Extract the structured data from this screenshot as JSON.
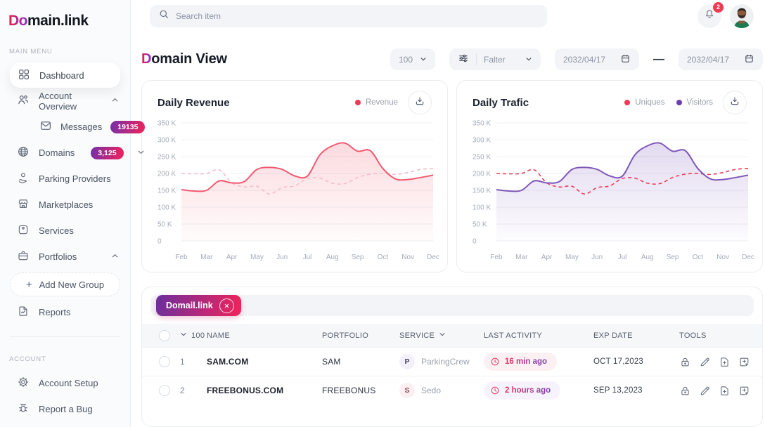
{
  "sidebar": {
    "logo": {
      "accent": "Do",
      "rest": "main.link"
    },
    "section_main": "MAIN MENU",
    "section_account": "ACCOUNT",
    "items": [
      {
        "label": "Dashboard",
        "icon": "dashboard-grid-icon",
        "active": true
      },
      {
        "label": "Account Overview",
        "icon": "users-icon",
        "chevron": "up"
      },
      {
        "label": "Messages",
        "icon": "mail-icon",
        "badge": "19135"
      },
      {
        "label": "Domains",
        "icon": "globe-icon",
        "badge": "3,125",
        "chevron": "down"
      },
      {
        "label": "Parking Providers",
        "icon": "hand-coin-icon"
      },
      {
        "label": "Marketplaces",
        "icon": "storefront-icon"
      },
      {
        "label": "Services",
        "icon": "package-icon"
      },
      {
        "label": "Portfolios",
        "icon": "briefcase-icon",
        "chevron": "up"
      },
      {
        "plus": "+",
        "label": "Add New Group",
        "type": "dashed-button"
      },
      {
        "label": "Reports",
        "icon": "report-icon"
      },
      {
        "label": "Account Setup",
        "icon": "gear-icon"
      },
      {
        "label": "Report a Bug",
        "icon": "bug-icon"
      }
    ]
  },
  "topbar": {
    "search_placeholder": "Search item",
    "notification_count": "2"
  },
  "header": {
    "title_accent": "D",
    "title_rest": "omain View",
    "page_size": "100",
    "filter_label": "Falter",
    "date_from": "2032/04/17",
    "date_separator": "—",
    "date_to": "2032/04/17"
  },
  "chart_data": [
    {
      "type": "area",
      "title": "Daily Revenue",
      "legend": [
        {
          "name": "Revenue",
          "color": "#ee3b58"
        }
      ],
      "categories": [
        "Feb",
        "Mar",
        "Apr",
        "May",
        "Jun",
        "Jul",
        "Aug",
        "Sep",
        "Oct",
        "Nov",
        "Dec"
      ],
      "yticks": [
        "350 K",
        "300 K",
        "250 K",
        "200 K",
        "150 K",
        "100 K",
        "50 K",
        "0"
      ],
      "units": "thousands",
      "ylim_k": [
        0,
        350
      ],
      "grid": true,
      "legend_position": "top-right",
      "series": [
        {
          "name": "Revenue",
          "style": "solid",
          "color": "#f2596f",
          "fill": true,
          "values_k": [
            152,
            148,
            150,
            178,
            172,
            176,
            212,
            218,
            212,
            193,
            192,
            255,
            282,
            290,
            266,
            268,
            215,
            184,
            182,
            188,
            195
          ]
        },
        {
          "name": "",
          "style": "dashed",
          "color": "#f6bdc9",
          "fill": false,
          "values_k": [
            200,
            199,
            200,
            211,
            172,
            160,
            162,
            139,
            158,
            163,
            185,
            186,
            171,
            170,
            188,
            198,
            200,
            197,
            203,
            212,
            215
          ]
        }
      ]
    },
    {
      "type": "area",
      "title": "Daily Trafic",
      "legend": [
        {
          "name": "Uniques",
          "color": "#ee3b58"
        },
        {
          "name": "Visitors",
          "color": "#6d3cb0"
        }
      ],
      "categories": [
        "Feb",
        "Mar",
        "Apr",
        "May",
        "Jun",
        "Jul",
        "Aug",
        "Sep",
        "Oct",
        "Nov",
        "Dec"
      ],
      "yticks": [
        "350 K",
        "300 K",
        "250 K",
        "200 K",
        "150 K",
        "100 K",
        "50 K",
        "0"
      ],
      "units": "thousands",
      "ylim_k": [
        0,
        350
      ],
      "grid": true,
      "legend_position": "top-right",
      "series": [
        {
          "name": "Visitors",
          "style": "solid",
          "color": "#7e57ba",
          "fill": true,
          "values_k": [
            152,
            148,
            150,
            178,
            172,
            176,
            212,
            218,
            212,
            193,
            192,
            255,
            282,
            290,
            266,
            268,
            215,
            184,
            182,
            188,
            195
          ]
        },
        {
          "name": "Uniques",
          "style": "dashed",
          "color": "#ee3b58",
          "fill": false,
          "values_k": [
            200,
            199,
            200,
            211,
            172,
            160,
            162,
            139,
            158,
            163,
            185,
            186,
            171,
            170,
            188,
            198,
            200,
            197,
            203,
            212,
            215
          ]
        }
      ]
    }
  ],
  "table": {
    "tag_label": "Domail.link",
    "head": {
      "count": "100",
      "name": "NAME",
      "portfolio": "PORTFOLIO",
      "service": "SERVICE",
      "last_activity": "LAST ACTIVITY",
      "exp_date": "EXP DATE",
      "tools": "TOOLS"
    },
    "rows": [
      {
        "index": "1",
        "name": "SAM.COM",
        "portfolio": "SAM",
        "service_initial": "P",
        "service": "ParkingCrew",
        "last_activity": "16 min ago",
        "exp_date": "OCT 17,2023"
      },
      {
        "index": "2",
        "name": "FREEBONUS.COM",
        "portfolio": "FREEBONUS",
        "service_initial": "S",
        "service": "Sedo",
        "last_activity": "2 hours ago",
        "exp_date": "SEP 13,2023"
      }
    ]
  }
}
